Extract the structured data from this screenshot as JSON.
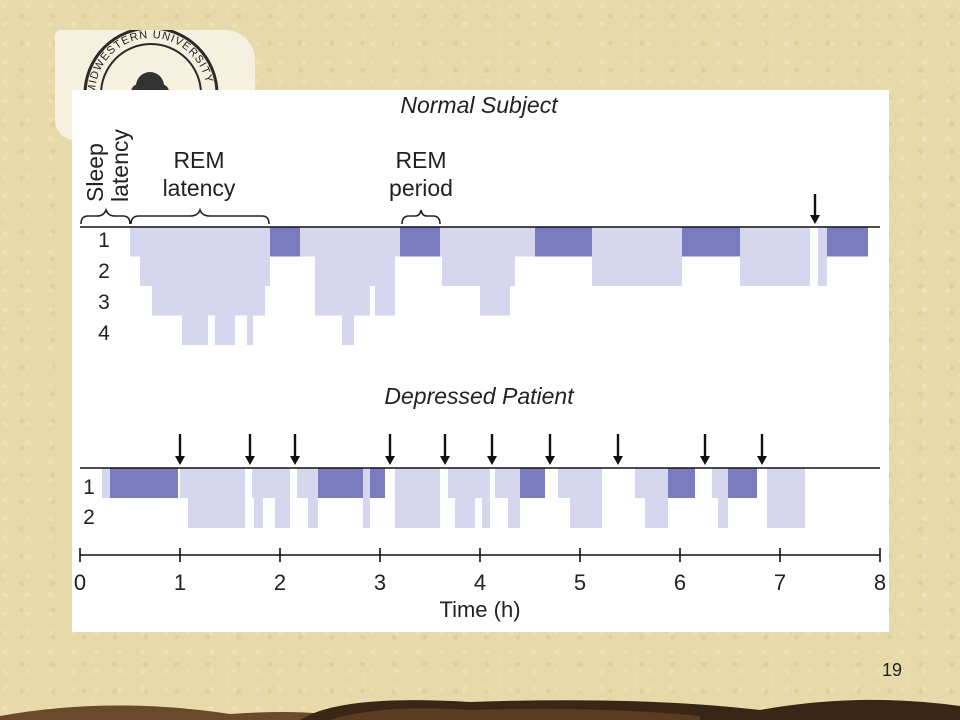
{
  "seal": {
    "text": "MIDWESTERN UNIVERSITY"
  },
  "diagram": {
    "normal_title": "Normal Subject",
    "depressed_title": "Depressed Patient",
    "annotations": {
      "sleep_latency_line1": "Sleep",
      "sleep_latency_line2": "latency",
      "rem_latency_line1": "REM",
      "rem_latency_line2": "latency",
      "rem_period_line1": "REM",
      "rem_period_line2": "period"
    },
    "normal_stage_labels": [
      "1",
      "2",
      "3",
      "4"
    ],
    "depressed_stage_labels": [
      "1",
      "2"
    ],
    "x_axis": {
      "label": "Time (h)",
      "ticks": [
        "0",
        "1",
        "2",
        "3",
        "4",
        "5",
        "6",
        "7",
        "8"
      ]
    },
    "colors": {
      "rem": "#7b7cc0",
      "nrem": "#d6d6ee",
      "line": "#111111"
    },
    "normal_arrows_h": [
      7.35
    ],
    "depressed_arrows_h": [
      1.0,
      1.7,
      2.15,
      3.1,
      3.65,
      4.12,
      4.7,
      5.38,
      6.25,
      6.82
    ],
    "normal_blocks": [
      {
        "start": 0.5,
        "end": 1.9,
        "depth": 1
      },
      {
        "start": 0.6,
        "end": 1.9,
        "depth": 2
      },
      {
        "start": 0.72,
        "end": 1.85,
        "depth": 3
      },
      {
        "start": 1.02,
        "end": 1.28,
        "depth": 4
      },
      {
        "start": 1.35,
        "end": 1.55,
        "depth": 4
      },
      {
        "start": 1.67,
        "end": 1.73,
        "depth": 4
      },
      {
        "start": 1.9,
        "end": 2.2,
        "depth": 1,
        "rem": true
      },
      {
        "start": 2.2,
        "end": 3.2,
        "depth": 1
      },
      {
        "start": 2.35,
        "end": 3.15,
        "depth": 2
      },
      {
        "start": 2.35,
        "end": 2.9,
        "depth": 3
      },
      {
        "start": 2.95,
        "end": 3.15,
        "depth": 3
      },
      {
        "start": 2.62,
        "end": 2.74,
        "depth": 4
      },
      {
        "start": 3.2,
        "end": 3.6,
        "depth": 1,
        "rem": true
      },
      {
        "start": 3.6,
        "end": 4.55,
        "depth": 1
      },
      {
        "start": 3.62,
        "end": 4.35,
        "depth": 2
      },
      {
        "start": 4.0,
        "end": 4.3,
        "depth": 3
      },
      {
        "start": 4.55,
        "end": 5.12,
        "depth": 1,
        "rem": true
      },
      {
        "start": 5.12,
        "end": 6.02,
        "depth": 1
      },
      {
        "start": 5.12,
        "end": 6.02,
        "depth": 2
      },
      {
        "start": 6.02,
        "end": 6.6,
        "depth": 1,
        "rem": true
      },
      {
        "start": 6.6,
        "end": 7.3,
        "depth": 1
      },
      {
        "start": 6.6,
        "end": 7.3,
        "depth": 2
      },
      {
        "start": 7.38,
        "end": 7.47,
        "depth": 1
      },
      {
        "start": 7.38,
        "end": 7.47,
        "depth": 2
      },
      {
        "start": 7.47,
        "end": 7.88,
        "depth": 1,
        "rem": true
      }
    ],
    "depressed_blocks": [
      {
        "start": 0.22,
        "end": 0.3,
        "depth": 1
      },
      {
        "start": 0.3,
        "end": 0.98,
        "depth": 1,
        "rem": true
      },
      {
        "start": 1.0,
        "end": 1.65,
        "depth": 1
      },
      {
        "start": 1.08,
        "end": 1.65,
        "depth": 2
      },
      {
        "start": 1.72,
        "end": 2.1,
        "depth": 1
      },
      {
        "start": 1.74,
        "end": 1.83,
        "depth": 2
      },
      {
        "start": 1.95,
        "end": 2.1,
        "depth": 2
      },
      {
        "start": 2.17,
        "end": 2.22,
        "depth": 1
      },
      {
        "start": 2.22,
        "end": 2.38,
        "depth": 1
      },
      {
        "start": 2.28,
        "end": 2.38,
        "depth": 2
      },
      {
        "start": 2.38,
        "end": 2.83,
        "depth": 1,
        "rem": true
      },
      {
        "start": 2.83,
        "end": 2.9,
        "depth": 1
      },
      {
        "start": 2.83,
        "end": 2.9,
        "depth": 2
      },
      {
        "start": 2.9,
        "end": 3.05,
        "depth": 1,
        "rem": true
      },
      {
        "start": 3.15,
        "end": 3.6,
        "depth": 1
      },
      {
        "start": 3.15,
        "end": 3.6,
        "depth": 2
      },
      {
        "start": 3.68,
        "end": 4.1,
        "depth": 1
      },
      {
        "start": 3.75,
        "end": 3.95,
        "depth": 2
      },
      {
        "start": 4.02,
        "end": 4.1,
        "depth": 2
      },
      {
        "start": 4.15,
        "end": 4.4,
        "depth": 1
      },
      {
        "start": 4.28,
        "end": 4.4,
        "depth": 2
      },
      {
        "start": 4.4,
        "end": 4.65,
        "depth": 1,
        "rem": true
      },
      {
        "start": 4.78,
        "end": 5.22,
        "depth": 1
      },
      {
        "start": 4.9,
        "end": 5.22,
        "depth": 2
      },
      {
        "start": 5.55,
        "end": 5.88,
        "depth": 1
      },
      {
        "start": 5.65,
        "end": 5.88,
        "depth": 2
      },
      {
        "start": 5.88,
        "end": 6.15,
        "depth": 1,
        "rem": true
      },
      {
        "start": 6.32,
        "end": 6.48,
        "depth": 1
      },
      {
        "start": 6.38,
        "end": 6.48,
        "depth": 2
      },
      {
        "start": 6.48,
        "end": 6.77,
        "depth": 1,
        "rem": true
      },
      {
        "start": 6.87,
        "end": 7.25,
        "depth": 1
      },
      {
        "start": 6.87,
        "end": 7.25,
        "depth": 2
      }
    ]
  },
  "slide": {
    "number": "19"
  }
}
